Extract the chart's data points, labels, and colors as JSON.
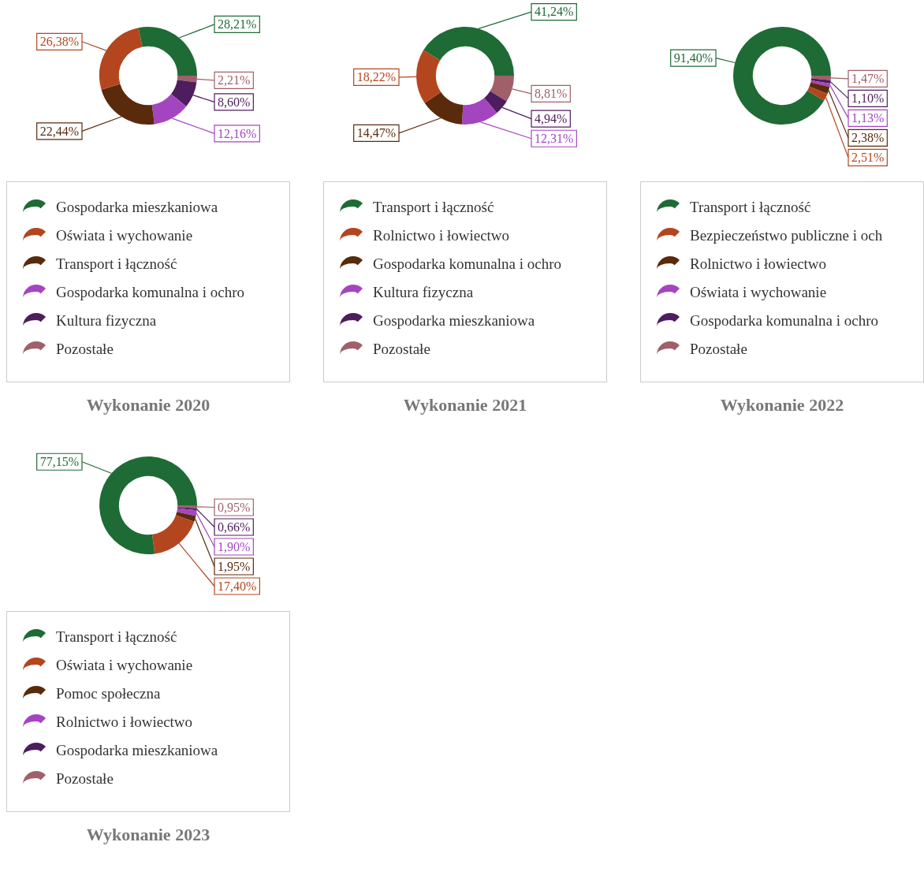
{
  "chart_data": [
    {
      "type": "donut",
      "title": "Wykonanie 2020",
      "legend": "bottom",
      "categories": [
        "Gospodarka mieszkaniowa",
        "Oświata i wychowanie",
        "Transport i łączność",
        "Gospodarka komunalna i ochro",
        "Kultura fizyczna",
        "Pozostałe"
      ],
      "values": [
        28.21,
        26.38,
        22.44,
        12.16,
        8.6,
        2.21
      ],
      "value_labels": [
        "28,21%",
        "26,38%",
        "22,44%",
        "12,16%",
        "8,60%",
        "2,21%"
      ],
      "colors": [
        "#1f6b35",
        "#b4461f",
        "#5a2a0c",
        "#a445c0",
        "#4e1d5e",
        "#a0606a"
      ]
    },
    {
      "type": "donut",
      "title": "Wykonanie 2021",
      "legend": "bottom",
      "categories": [
        "Transport i łączność",
        "Rolnictwo i łowiectwo",
        "Gospodarka komunalna i ochro",
        "Kultura fizyczna",
        "Gospodarka mieszkaniowa",
        "Pozostałe"
      ],
      "values": [
        41.24,
        18.22,
        14.47,
        12.31,
        4.94,
        8.81
      ],
      "value_labels": [
        "41,24%",
        "18,22%",
        "14,47%",
        "12,31%",
        "4,94%",
        "8,81%"
      ],
      "colors": [
        "#1f6b35",
        "#b4461f",
        "#5a2a0c",
        "#a445c0",
        "#4e1d5e",
        "#a0606a"
      ]
    },
    {
      "type": "donut",
      "title": "Wykonanie 2022",
      "legend": "bottom",
      "categories": [
        "Transport i łączność",
        "Bezpieczeństwo publiczne i och",
        "Rolnictwo i łowiectwo",
        "Oświata i wychowanie",
        "Gospodarka komunalna i ochro",
        "Pozostałe"
      ],
      "values": [
        91.4,
        2.51,
        2.38,
        1.13,
        1.1,
        1.47
      ],
      "value_labels": [
        "91,40%",
        "2,51%",
        "2,38%",
        "1,13%",
        "1,10%",
        "1,47%"
      ],
      "colors": [
        "#1f6b35",
        "#b4461f",
        "#5a2a0c",
        "#a445c0",
        "#4e1d5e",
        "#a0606a"
      ]
    },
    {
      "type": "donut",
      "title": "Wykonanie 2023",
      "legend": "bottom",
      "categories": [
        "Transport i łączność",
        "Oświata i wychowanie",
        "Pomoc społeczna",
        "Rolnictwo i łowiectwo",
        "Gospodarka mieszkaniowa",
        "Pozostałe"
      ],
      "values": [
        77.15,
        17.4,
        1.95,
        1.9,
        0.66,
        0.95
      ],
      "value_labels": [
        "77,15%",
        "17,40%",
        "1,95%",
        "1,90%",
        "0,66%",
        "0,95%"
      ],
      "colors": [
        "#1f6b35",
        "#b4461f",
        "#5a2a0c",
        "#a445c0",
        "#4e1d5e",
        "#a0606a"
      ]
    }
  ]
}
